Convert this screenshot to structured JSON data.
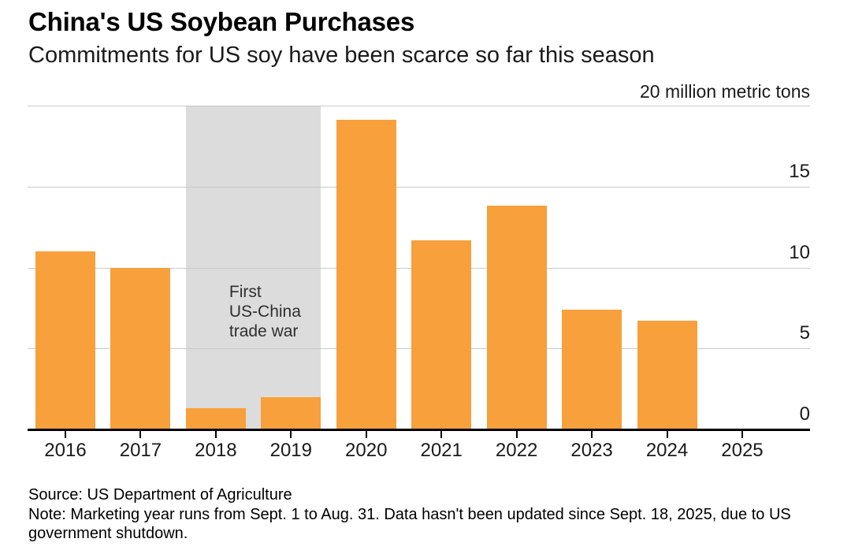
{
  "header": {
    "title": "China's US Soybean Purchases",
    "subtitle": "Commitments for US soy have been scarce so far this season"
  },
  "chart_data": {
    "type": "bar",
    "title": "China's US Soybean Purchases",
    "subtitle": "Commitments for US soy have been scarce so far this season",
    "unit_label": "20 million metric tons",
    "categories": [
      "2016",
      "2017",
      "2018",
      "2019",
      "2020",
      "2021",
      "2022",
      "2023",
      "2024",
      "2025"
    ],
    "values": [
      11.0,
      10.0,
      1.3,
      2.0,
      19.1,
      11.7,
      13.8,
      7.4,
      6.7,
      0
    ],
    "ylim": [
      0,
      20
    ],
    "yticks": [
      0,
      5,
      10,
      15,
      20
    ],
    "ylabel": "million metric tons",
    "xlabel": "",
    "grid": "horizontal",
    "ytick_side": "right",
    "legend": "none",
    "colors": {
      "bar": "#F7A03C",
      "highlight_band": "#DCDCDC",
      "gridline": "#C9C9C9",
      "axis": "#000000"
    },
    "highlight": {
      "from_category": "2018",
      "to_category": "2019",
      "label_lines": [
        "First",
        "US-China",
        "trade war"
      ]
    }
  },
  "footer": {
    "source": "Source: US Department of Agriculture",
    "note": "Note: Marketing year runs from Sept. 1 to Aug. 31. Data hasn't been updated since Sept. 18, 2025, due to US government shutdown."
  }
}
